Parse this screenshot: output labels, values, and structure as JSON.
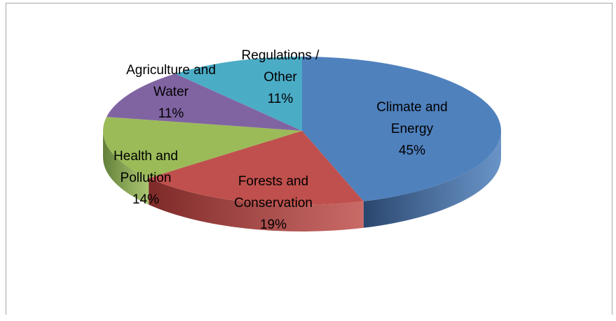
{
  "chart_data": {
    "type": "pie",
    "style": "3d",
    "categories": [
      "Climate and Energy",
      "Forests and Conservation",
      "Health and Pollution",
      "Agriculture and Water",
      "Regulations / Other"
    ],
    "values": [
      45,
      19,
      14,
      11,
      11
    ],
    "labels": [
      {
        "lines": [
          "Climate and",
          "Energy",
          "45%"
        ]
      },
      {
        "lines": [
          "Forests and",
          "Conservation",
          "19%"
        ]
      },
      {
        "lines": [
          "Health and",
          "Pollution",
          "14%"
        ]
      },
      {
        "lines": [
          "Agriculture and",
          "Water",
          "11%"
        ]
      },
      {
        "lines": [
          "Regulations /",
          "Other",
          "11%"
        ]
      }
    ],
    "colors": [
      "#4f81bd",
      "#c0504d",
      "#9bbb59",
      "#8064a2",
      "#4bacc6"
    ],
    "side_colors": [
      "#2a466d",
      "#7d2a28",
      "#63803a",
      "#55406e",
      "#2d7b8f"
    ],
    "title": "",
    "legend": "none",
    "label_position": "inside"
  }
}
